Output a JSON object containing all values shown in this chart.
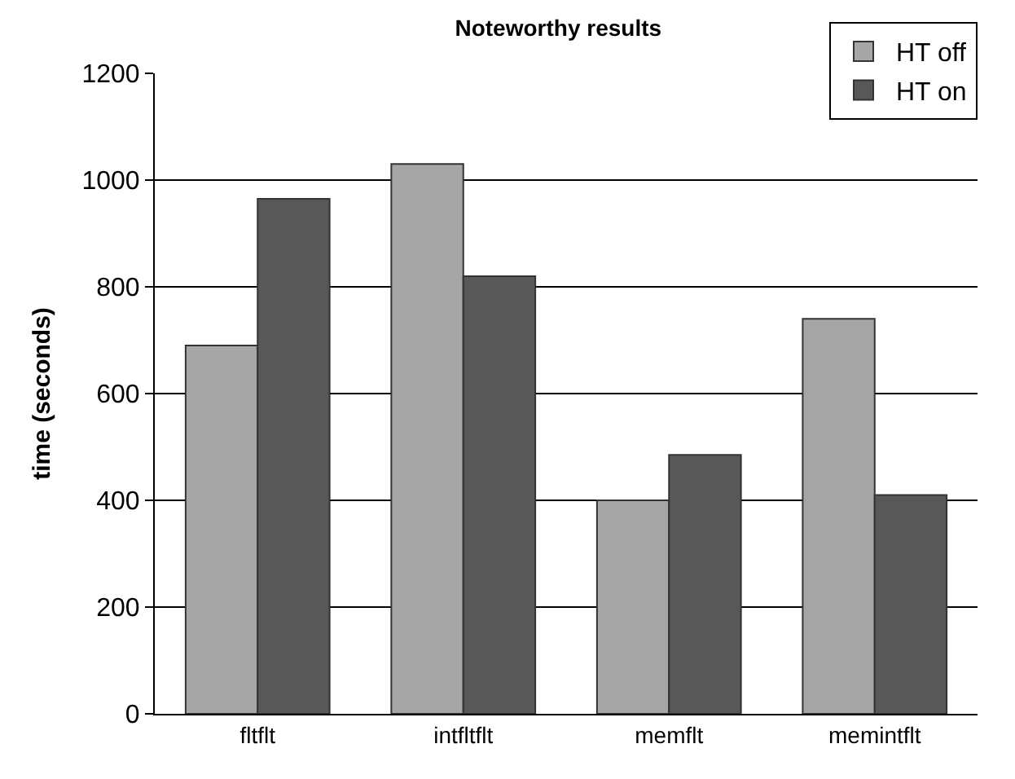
{
  "chart_data": {
    "type": "bar",
    "title": "Noteworthy results",
    "ylabel": "time (seconds)",
    "categories": [
      "fltflt",
      "intfltflt",
      "memflt",
      "memintflt"
    ],
    "series": [
      {
        "name": "HT off",
        "color": "#a6a6a6",
        "values": [
          690,
          1030,
          400,
          740
        ]
      },
      {
        "name": "HT on",
        "color": "#585858",
        "values": [
          965,
          820,
          485,
          410
        ]
      }
    ],
    "ylim": [
      0,
      1200
    ],
    "yticks": [
      0,
      200,
      400,
      600,
      800,
      1000,
      1200
    ],
    "grid": "y",
    "legend": "top right"
  }
}
